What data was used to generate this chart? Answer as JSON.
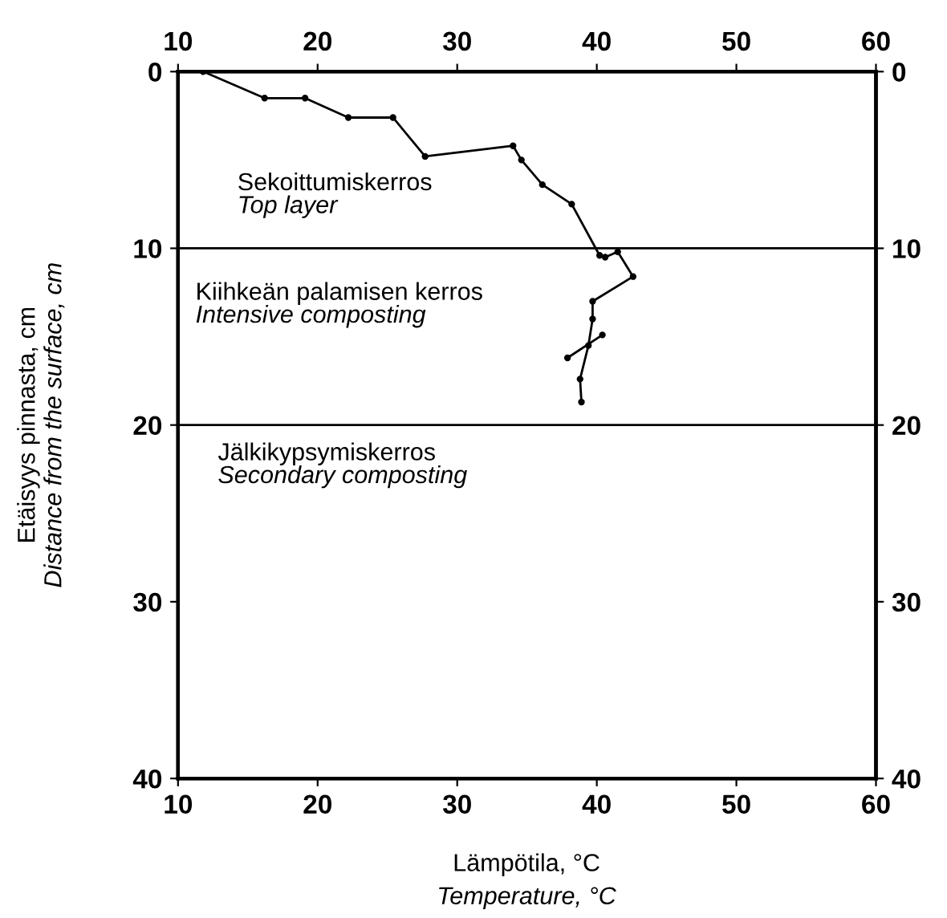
{
  "chart_data": {
    "type": "line",
    "xlabel": "Lämpötila, °C\nTemperature, °C",
    "ylabel": "Etäisyys pinnasta, cm\nDistance from the surface, cm",
    "series": [
      {
        "color": "#000000",
        "x": [
          11.8,
          16.2,
          19.1,
          22.2,
          25.4,
          27.7,
          34.0,
          34.6,
          36.1,
          38.2,
          40.2,
          40.6,
          41.5,
          42.6,
          39.7,
          39.7,
          39.4,
          38.8,
          38.9
        ],
        "values": [
          0,
          1.5,
          1.5,
          2.6,
          2.6,
          4.8,
          4.2,
          5.0,
          6.4,
          7.5,
          10.4,
          10.5,
          10.2,
          11.6,
          13.0,
          14.0,
          15.5,
          17.4,
          18.7
        ]
      },
      {
        "color": "#000000",
        "x": [
          37.9,
          40.4
        ],
        "values": [
          16.2,
          14.9
        ]
      }
    ],
    "marker": "circle",
    "line_style": "solid",
    "xlim": [
      10,
      60
    ],
    "xticks": [
      10,
      20,
      30,
      40,
      50,
      60
    ],
    "x2lim": [
      10,
      60
    ],
    "x2ticks": [
      10,
      20,
      30,
      40,
      50,
      60
    ],
    "ylim": [
      40,
      0
    ],
    "yticks": [
      0,
      10,
      20,
      30,
      40
    ],
    "y2lim": [
      40,
      0
    ],
    "y2ticks": [
      0,
      10,
      20,
      30,
      40
    ],
    "ref_lines": [
      {
        "axis": "y",
        "value": 10,
        "color": "#000000"
      },
      {
        "axis": "y",
        "value": 20,
        "color": "#000000"
      }
    ],
    "annotations": [
      "Sekoittumiskerros\nTop layer",
      "Kiihkeän palamisen kerros\nIntensive composting",
      "Jälkikypsymiskerros\nSecondary composting"
    ],
    "grid": false,
    "legend": false
  }
}
